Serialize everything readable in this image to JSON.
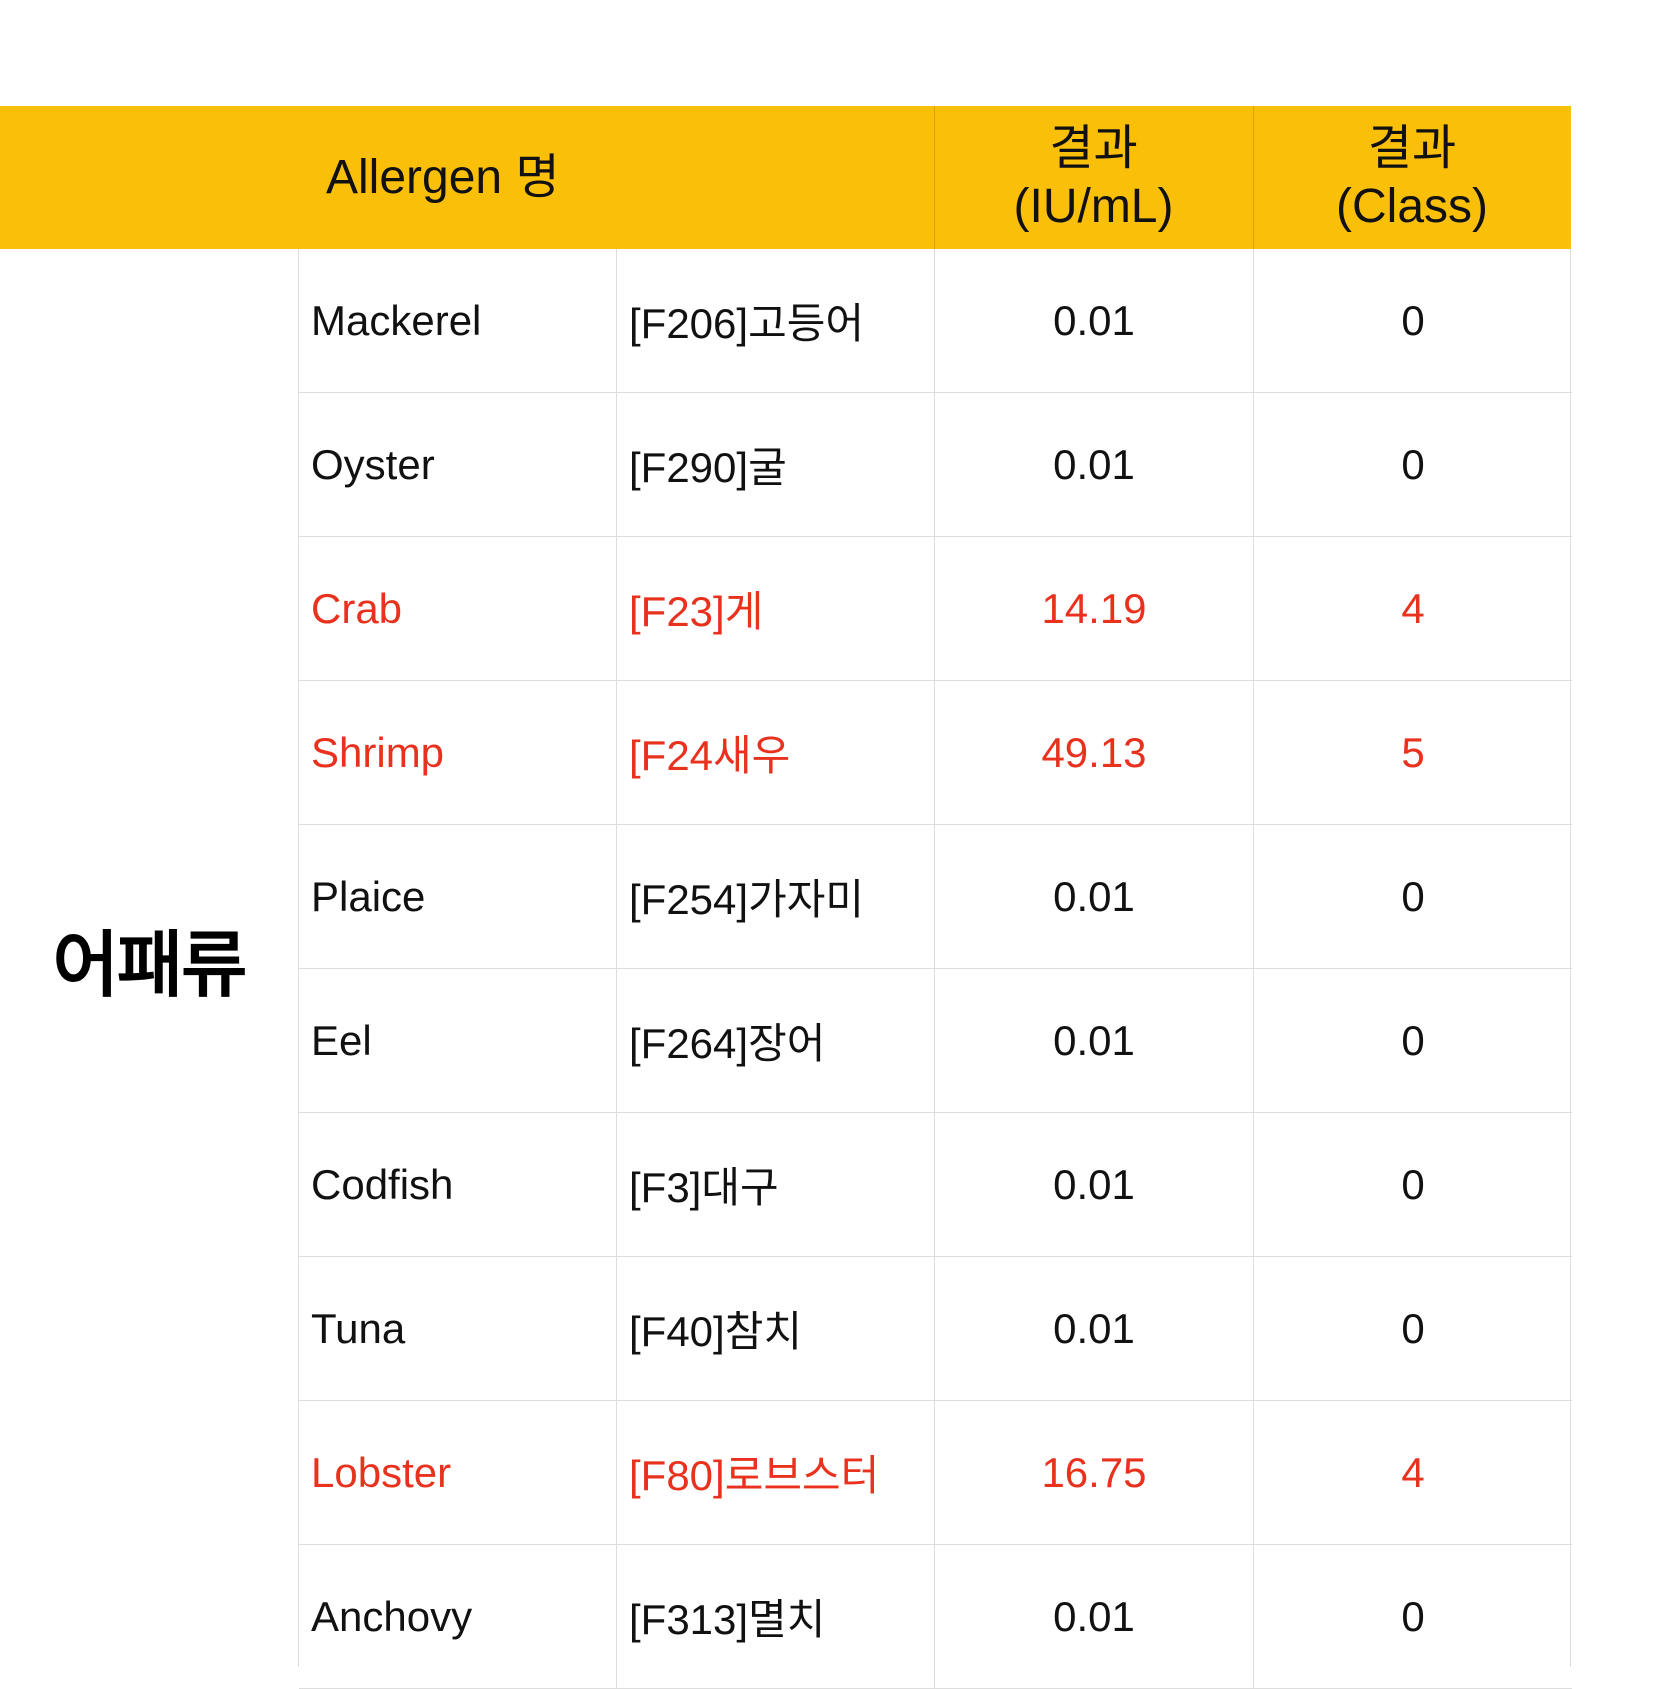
{
  "header": {
    "allergen_name": "Allergen 명",
    "result_iu_line1": "결과",
    "result_iu_line2": "(IU/mL)",
    "result_class_line1": "결과",
    "result_class_line2": "(Class)"
  },
  "category": "어패류",
  "colors": {
    "header_bg": "#f9bf09",
    "highlight_text": "#e8321e",
    "normal_text": "#111111"
  },
  "rows": [
    {
      "en": "Mackerel",
      "code": "[F206]고등어",
      "iu": "0.01",
      "class": "0",
      "highlight": false
    },
    {
      "en": "Oyster",
      "code": "[F290]굴",
      "iu": "0.01",
      "class": "0",
      "highlight": false
    },
    {
      "en": "Crab",
      "code": "[F23]게",
      "iu": "14.19",
      "class": "4",
      "highlight": true
    },
    {
      "en": "Shrimp",
      "code": "[F24새우",
      "iu": "49.13",
      "class": "5",
      "highlight": true
    },
    {
      "en": "Plaice",
      "code": "[F254]가자미",
      "iu": "0.01",
      "class": "0",
      "highlight": false
    },
    {
      "en": "Eel",
      "code": "[F264]장어",
      "iu": "0.01",
      "class": "0",
      "highlight": false
    },
    {
      "en": "Codfish",
      "code": "[F3]대구",
      "iu": "0.01",
      "class": "0",
      "highlight": false
    },
    {
      "en": "Tuna",
      "code": "[F40]참치",
      "iu": "0.01",
      "class": "0",
      "highlight": false
    },
    {
      "en": "Lobster",
      "code": "[F80]로브스터",
      "iu": "16.75",
      "class": "4",
      "highlight": true
    },
    {
      "en": "Anchovy",
      "code": "[F313]멸치",
      "iu": "0.01",
      "class": "0",
      "highlight": false
    }
  ]
}
